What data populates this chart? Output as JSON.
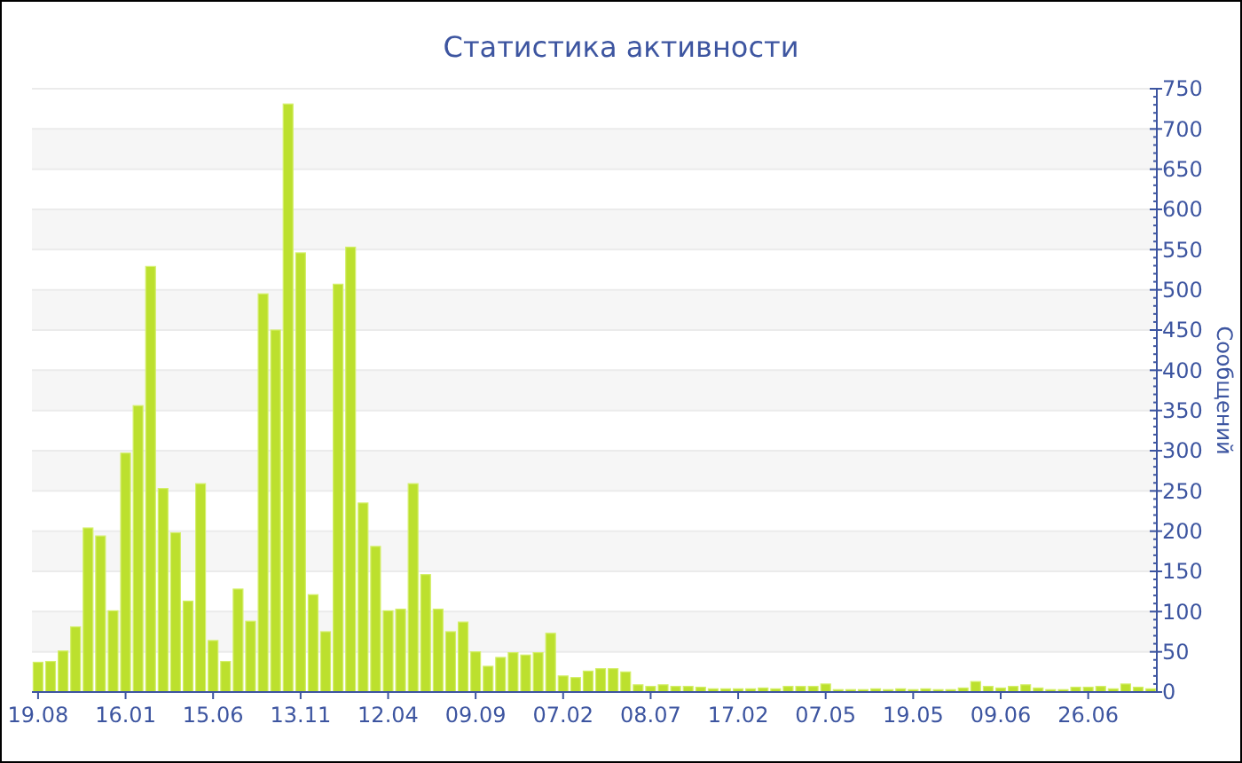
{
  "chart_data": {
    "type": "bar",
    "title": "Статистика активности",
    "ylabel": "Сообщений",
    "color": "#bce02e",
    "categories": [
      "19.08",
      null,
      null,
      null,
      null,
      null,
      null,
      "16.01",
      null,
      null,
      null,
      null,
      null,
      null,
      "15.06",
      null,
      null,
      null,
      null,
      null,
      null,
      "13.11",
      null,
      null,
      null,
      null,
      null,
      null,
      "12.04",
      null,
      null,
      null,
      null,
      null,
      null,
      "09.09",
      null,
      null,
      null,
      null,
      null,
      null,
      "07.02",
      null,
      null,
      null,
      null,
      null,
      null,
      "08.07",
      null,
      null,
      null,
      null,
      null,
      null,
      "17.02",
      null,
      null,
      null,
      null,
      null,
      null,
      "07.05",
      null,
      null,
      null,
      null,
      null,
      null,
      "19.05",
      null,
      null,
      null,
      null,
      null,
      null,
      "09.06",
      null,
      null,
      null,
      null,
      null,
      null,
      "26.06",
      null,
      null,
      null,
      null,
      null
    ],
    "values": [
      37,
      38,
      51,
      81,
      204,
      194,
      101,
      297,
      356,
      529,
      253,
      198,
      113,
      259,
      64,
      38,
      128,
      88,
      495,
      450,
      731,
      546,
      121,
      75,
      507,
      553,
      235,
      181,
      101,
      103,
      259,
      146,
      103,
      75,
      87,
      50,
      32,
      43,
      49,
      46,
      49,
      73,
      20,
      18,
      26,
      29,
      29,
      25,
      9,
      7,
      9,
      7,
      7,
      6,
      4,
      4,
      4,
      4,
      5,
      4,
      7,
      7,
      7,
      10,
      3,
      3,
      3,
      4,
      3,
      4,
      3,
      4,
      3,
      3,
      5,
      13,
      7,
      5,
      7,
      9,
      5,
      3,
      3,
      6,
      6,
      7,
      4,
      10,
      6,
      4
    ],
    "ylim": [
      0,
      750
    ],
    "yticks": [
      0,
      50,
      100,
      150,
      200,
      250,
      300,
      350,
      400,
      450,
      500,
      550,
      600,
      650,
      700,
      750
    ],
    "grid": "y"
  }
}
